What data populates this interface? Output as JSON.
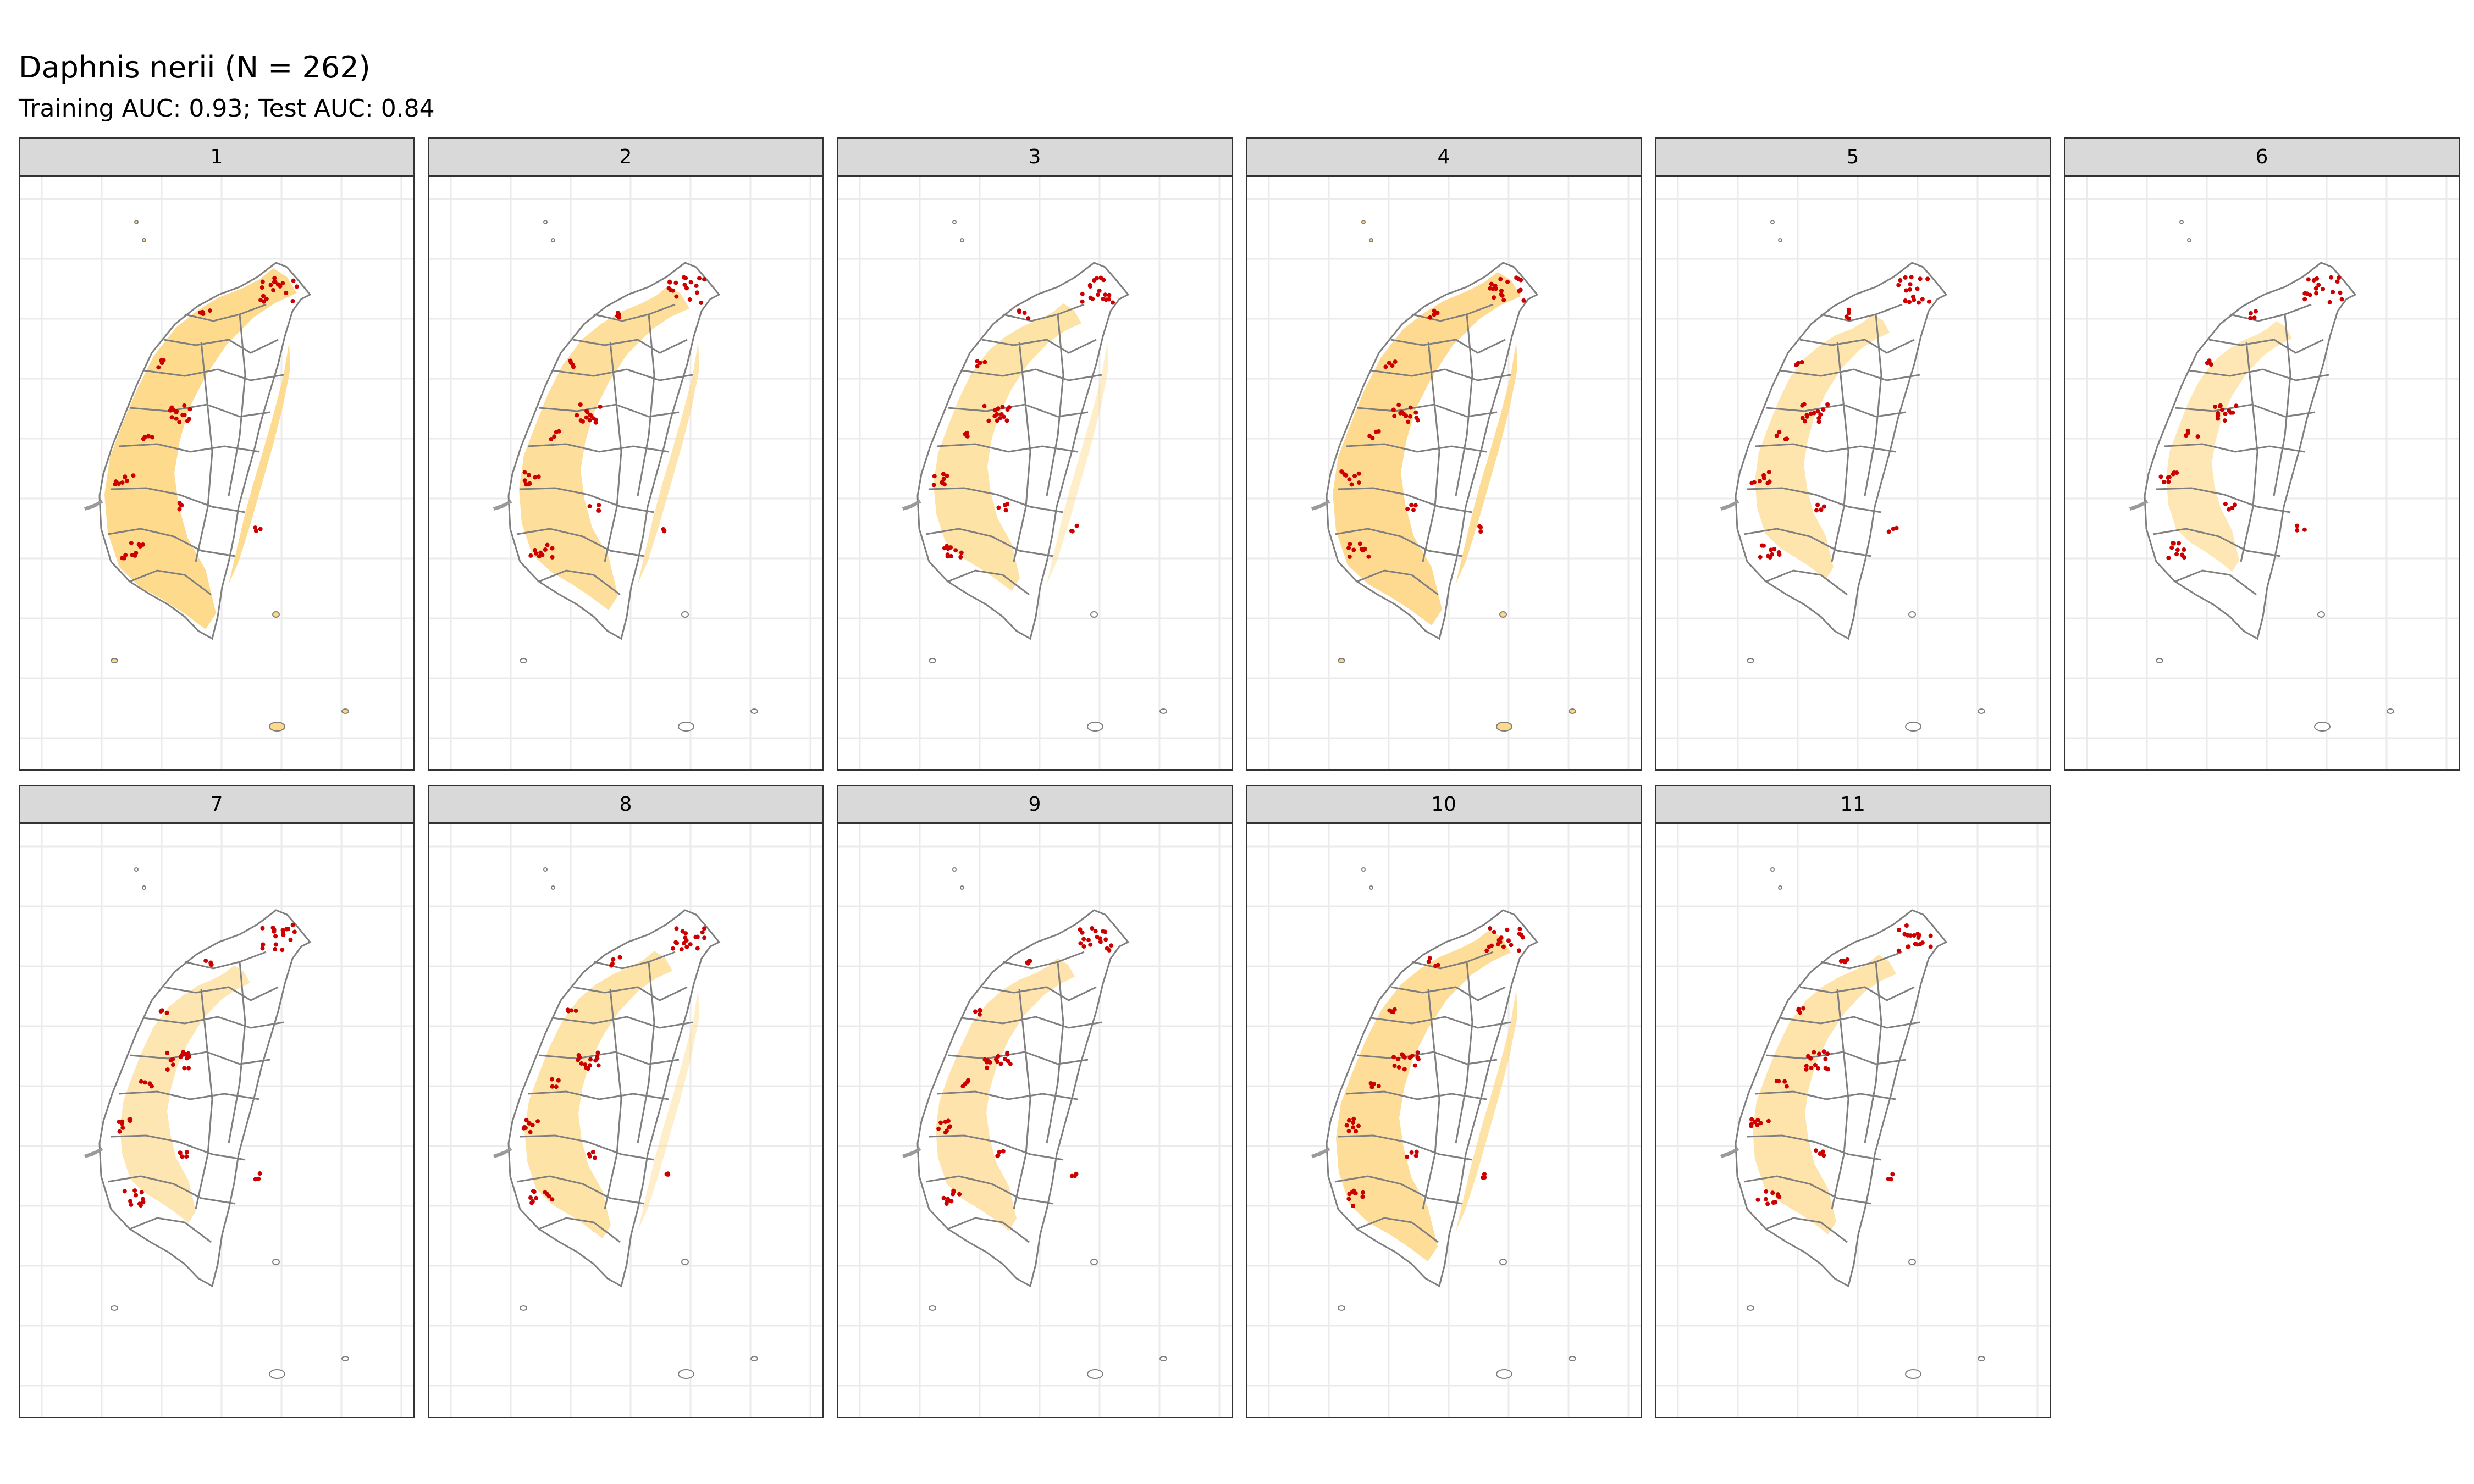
{
  "title": "Daphnis nerii (N = 262)",
  "subtitle": "Training AUC: 0.93; Test AUC: 0.84",
  "colors": {
    "suitable_fill": "#fdd98a",
    "land_fill": "#ffffff",
    "boundary": "#7f7f7f",
    "occurrence": "#cc0000",
    "grid": "#ebebeb",
    "strip_fill": "#d9d9d9"
  },
  "panels": [
    {
      "label": "1",
      "suitable_level": 0.95
    },
    {
      "label": "2",
      "suitable_level": 0.7
    },
    {
      "label": "3",
      "suitable_level": 0.45
    },
    {
      "label": "4",
      "suitable_level": 0.9
    },
    {
      "label": "5",
      "suitable_level": 0.3
    },
    {
      "label": "6",
      "suitable_level": 0.2
    },
    {
      "label": "7",
      "suitable_level": 0.25
    },
    {
      "label": "8",
      "suitable_level": 0.45
    },
    {
      "label": "9",
      "suitable_level": 0.35
    },
    {
      "label": "10",
      "suitable_level": 0.75
    },
    {
      "label": "11",
      "suitable_level": 0.4
    }
  ]
}
